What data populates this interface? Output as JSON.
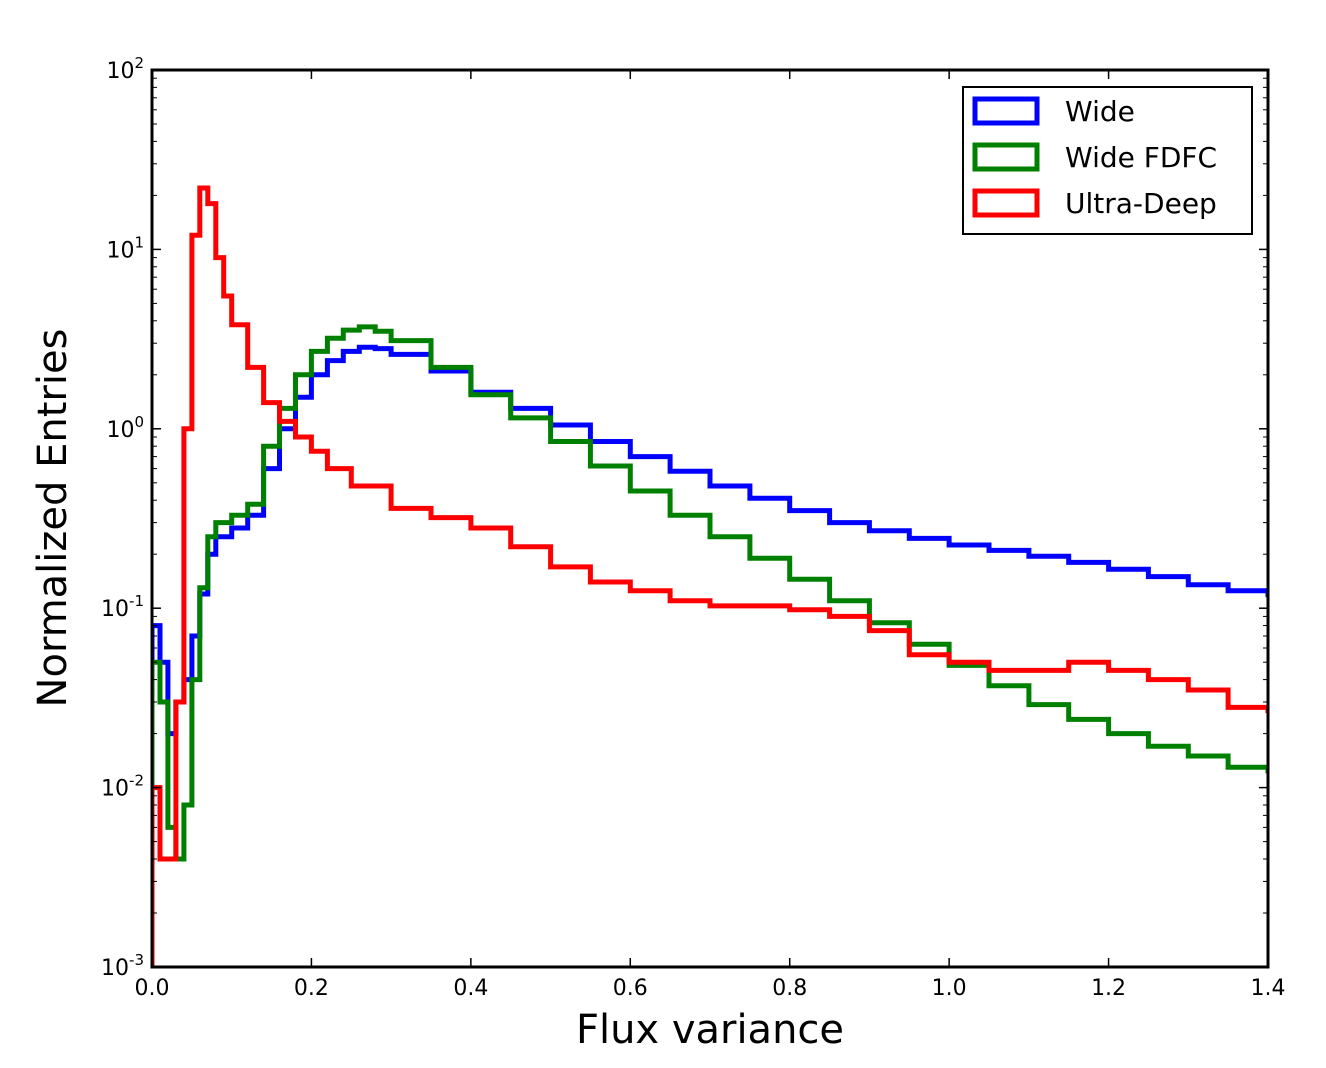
{
  "chart_data": {
    "type": "line",
    "xlabel": "Flux variance",
    "ylabel": "Normalized Entries",
    "xlim": [
      0.0,
      1.4
    ],
    "ylim": [
      0.001,
      100
    ],
    "yscale": "log",
    "grid": false,
    "legend_position": "top-right",
    "x_ticks": [
      "0.0",
      "0.2",
      "0.4",
      "0.6",
      "0.8",
      "1.0",
      "1.2",
      "1.4"
    ],
    "y_ticks": [
      {
        "base": "10",
        "exp": "-3",
        "value": 0.001
      },
      {
        "base": "10",
        "exp": "-2",
        "value": 0.01
      },
      {
        "base": "10",
        "exp": "-1",
        "value": 0.1
      },
      {
        "base": "10",
        "exp": "0",
        "value": 1
      },
      {
        "base": "10",
        "exp": "1",
        "value": 10
      },
      {
        "base": "10",
        "exp": "2",
        "value": 100
      }
    ],
    "series": [
      {
        "name": "Wide",
        "color": "#0000ff",
        "x": [
          0.0,
          0.01,
          0.02,
          0.03,
          0.04,
          0.05,
          0.06,
          0.07,
          0.08,
          0.1,
          0.12,
          0.14,
          0.16,
          0.18,
          0.2,
          0.22,
          0.24,
          0.26,
          0.28,
          0.3,
          0.35,
          0.4,
          0.45,
          0.5,
          0.55,
          0.6,
          0.65,
          0.7,
          0.75,
          0.8,
          0.85,
          0.9,
          0.95,
          1.0,
          1.05,
          1.1,
          1.15,
          1.2,
          1.25,
          1.3,
          1.35,
          1.4
        ],
        "y": [
          0.08,
          0.05,
          0.02,
          0.03,
          0.04,
          0.07,
          0.12,
          0.2,
          0.25,
          0.28,
          0.33,
          0.6,
          1.0,
          1.5,
          2.0,
          2.4,
          2.7,
          2.85,
          2.8,
          2.6,
          2.1,
          1.6,
          1.3,
          1.05,
          0.85,
          0.7,
          0.58,
          0.48,
          0.41,
          0.35,
          0.3,
          0.27,
          0.245,
          0.225,
          0.21,
          0.195,
          0.18,
          0.165,
          0.15,
          0.135,
          0.125,
          0.115
        ]
      },
      {
        "name": "Wide FDFC",
        "color": "#008000",
        "x": [
          0.0,
          0.01,
          0.02,
          0.03,
          0.04,
          0.05,
          0.06,
          0.07,
          0.08,
          0.1,
          0.12,
          0.14,
          0.16,
          0.18,
          0.2,
          0.22,
          0.24,
          0.26,
          0.28,
          0.3,
          0.35,
          0.4,
          0.45,
          0.5,
          0.55,
          0.6,
          0.65,
          0.7,
          0.75,
          0.8,
          0.85,
          0.9,
          0.95,
          1.0,
          1.05,
          1.1,
          1.15,
          1.2,
          1.25,
          1.3,
          1.35,
          1.4
        ],
        "y": [
          0.05,
          0.03,
          0.006,
          0.004,
          0.008,
          0.04,
          0.13,
          0.25,
          0.3,
          0.33,
          0.38,
          0.8,
          1.3,
          2.0,
          2.7,
          3.2,
          3.55,
          3.7,
          3.5,
          3.1,
          2.2,
          1.55,
          1.15,
          0.85,
          0.62,
          0.45,
          0.33,
          0.25,
          0.19,
          0.145,
          0.11,
          0.083,
          0.063,
          0.048,
          0.037,
          0.029,
          0.024,
          0.02,
          0.017,
          0.015,
          0.013,
          0.012
        ]
      },
      {
        "name": "Ultra-Deep",
        "color": "#ff0000",
        "x": [
          0.0,
          0.01,
          0.02,
          0.03,
          0.04,
          0.05,
          0.06,
          0.07,
          0.08,
          0.09,
          0.1,
          0.12,
          0.14,
          0.16,
          0.18,
          0.2,
          0.22,
          0.25,
          0.3,
          0.35,
          0.4,
          0.45,
          0.5,
          0.55,
          0.6,
          0.65,
          0.7,
          0.75,
          0.8,
          0.85,
          0.9,
          0.95,
          1.0,
          1.05,
          1.1,
          1.15,
          1.2,
          1.25,
          1.3,
          1.35,
          1.4
        ],
        "y": [
          0.01,
          0.004,
          0.004,
          0.03,
          1.0,
          12.0,
          22.0,
          18.0,
          9.0,
          5.5,
          3.8,
          2.2,
          1.4,
          1.1,
          0.9,
          0.75,
          0.6,
          0.48,
          0.36,
          0.32,
          0.28,
          0.22,
          0.17,
          0.14,
          0.125,
          0.11,
          0.103,
          0.103,
          0.098,
          0.09,
          0.075,
          0.055,
          0.05,
          0.045,
          0.045,
          0.05,
          0.045,
          0.04,
          0.035,
          0.028,
          0.026
        ]
      }
    ]
  }
}
